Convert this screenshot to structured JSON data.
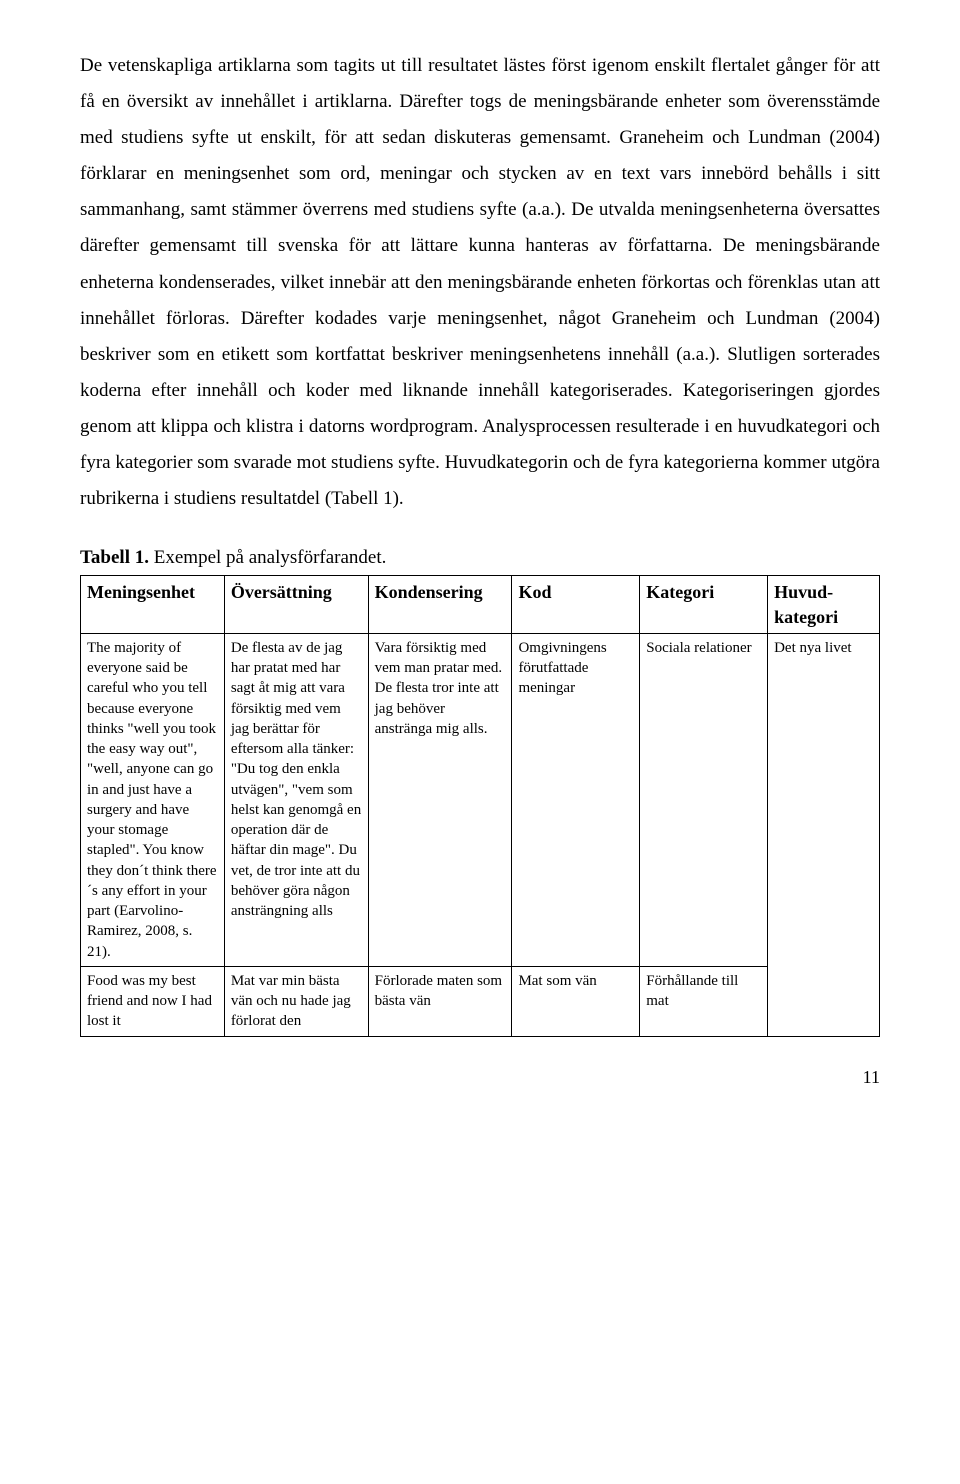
{
  "paragraph": "De vetenskapliga artiklarna som tagits ut till resultatet lästes först igenom enskilt flertalet gånger för att få en översikt av innehållet i artiklarna. Därefter togs de meningsbärande enheter som överensstämde med studiens syfte ut enskilt, för att sedan diskuteras gemensamt. Graneheim och Lundman (2004) förklarar en meningsenhet som ord, meningar och stycken av en text vars innebörd behålls i sitt sammanhang, samt stämmer överrens med studiens syfte (a.a.). De utvalda meningsenheterna översattes därefter gemensamt till svenska för att lättare kunna hanteras av författarna. De meningsbärande enheterna kondenserades, vilket innebär att den meningsbärande enheten förkortas och förenklas utan att innehållet förloras. Därefter kodades varje meningsenhet, något Graneheim och Lundman (2004) beskriver som en etikett som kortfattat beskriver meningsenhetens innehåll (a.a.). Slutligen sorterades koderna efter innehåll och koder med liknande innehåll kategoriserades. Kategoriseringen gjordes genom att klippa och klistra i datorns wordprogram. Analysprocessen resulterade i en huvudkategori och fyra kategorier som svarade mot studiens syfte. Huvudkategorin och de fyra kategorierna kommer utgöra rubrikerna i studiens resultatdel (Tabell 1).",
  "caption": {
    "bold": "Tabell 1.",
    "rest": " Exempel på analysförfarandet."
  },
  "table": {
    "headers": [
      "Meningsenhet",
      "Översättning",
      "Kondensering",
      "Kod",
      "Kategori",
      "Huvud-kategori"
    ],
    "rows": [
      {
        "meningsenhet": "The majority of everyone said be careful who you tell because everyone thinks \"well you took the easy way out\", \"well, anyone can go in and just have a surgery and have your stomage stapled\". You know they don´t think there´s any effort in your part (Earvolino-Ramirez, 2008, s. 21).",
        "oversattning": "De flesta av de jag har pratat med har sagt åt mig att vara försiktig med vem jag berättar för eftersom alla tänker: \"Du tog den enkla utvägen\", \"vem som helst kan genomgå en operation där de häftar din mage\". Du vet, de tror inte att du behöver göra någon ansträngning alls",
        "kondensering": "Vara försiktig med vem man pratar med. De flesta tror inte att jag behöver anstränga mig alls.",
        "kod": "Omgivningens förutfattade meningar",
        "kategori": "Sociala relationer"
      },
      {
        "meningsenhet": "Food was my best friend and now I had lost it",
        "oversattning": "Mat var min bästa vän och nu hade jag förlorat den",
        "kondensering": "Förlorade maten som bästa vän",
        "kod": "Mat som vän",
        "kategori": "Förhållande till mat"
      }
    ],
    "huvudkategori": "Det nya livet"
  },
  "page_number": "11"
}
